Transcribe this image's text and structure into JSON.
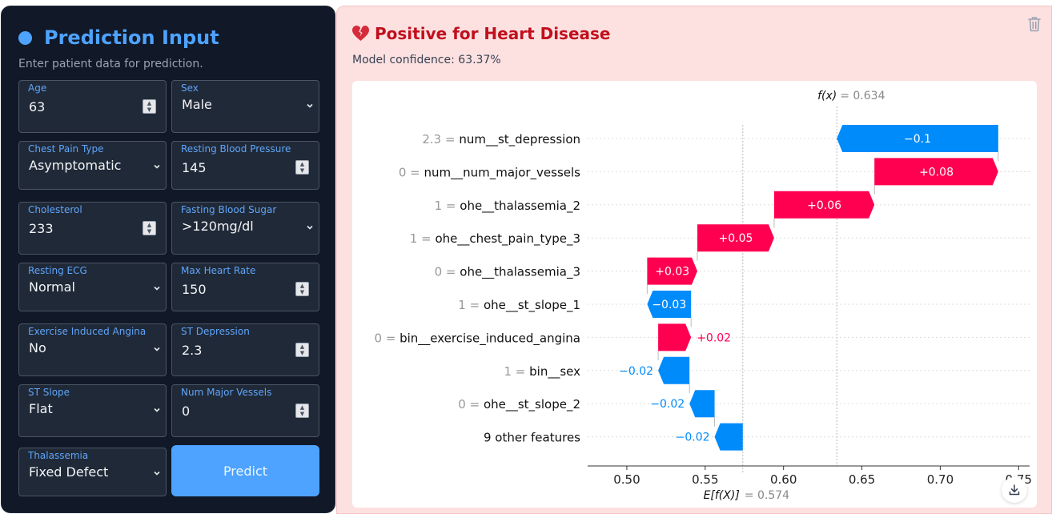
{
  "left": {
    "title": "Prediction Input",
    "subtitle": "Enter patient data for prediction.",
    "fields": [
      {
        "label": "Age",
        "value": "63",
        "kind": "num"
      },
      {
        "label": "Sex",
        "value": "Male",
        "kind": "sel"
      },
      {
        "label": "Chest Pain Type",
        "value": "Asymptomatic",
        "kind": "sel"
      },
      {
        "label": "Resting Blood Pressure",
        "value": "145",
        "kind": "num"
      },
      {
        "label": "Cholesterol",
        "value": "233",
        "kind": "num"
      },
      {
        "label": "Fasting Blood Sugar",
        "value": ">120mg/dl",
        "kind": "sel"
      },
      {
        "label": "Resting ECG",
        "value": "Normal",
        "kind": "sel"
      },
      {
        "label": "Max Heart Rate",
        "value": "150",
        "kind": "num"
      },
      {
        "label": "Exercise Induced Angina",
        "value": "No",
        "kind": "sel"
      },
      {
        "label": "ST Depression",
        "value": "2.3",
        "kind": "num"
      },
      {
        "label": "ST Slope",
        "value": "Flat",
        "kind": "sel"
      },
      {
        "label": "Num Major Vessels",
        "value": "0",
        "kind": "num"
      },
      {
        "label": "Thalassemia",
        "value": "Fixed Defect",
        "kind": "sel"
      }
    ],
    "predict_label": "Predict"
  },
  "result": {
    "title": "Positive for Heart Disease",
    "confidence": "Model confidence: 63.37%"
  },
  "colors": {
    "positive": "#ff0051",
    "negative": "#008bfb",
    "accent": "#4da3ff",
    "title_red": "#c10f1d"
  },
  "chart_data": {
    "type": "waterfall",
    "fx_label": "f(x)",
    "fx_value": "= 0.634",
    "ex_label": "E[f(X)]",
    "ex_value": "= 0.574",
    "base_value": 0.574,
    "output_value": 0.634,
    "xlim": [
      0.475,
      0.757
    ],
    "xticks": [
      "0.50",
      "0.55",
      "0.60",
      "0.65",
      "0.70",
      "0.75"
    ],
    "features": [
      {
        "value": "2.3 =",
        "name": "num__st_depression",
        "label": "−0.1",
        "start": 0.737,
        "end": 0.634,
        "inside": true
      },
      {
        "value": "0 =",
        "name": "num__num_major_vessels",
        "label": "+0.08",
        "start": 0.658,
        "end": 0.737,
        "inside": true
      },
      {
        "value": "1 =",
        "name": "ohe__thalassemia_2",
        "label": "+0.06",
        "start": 0.594,
        "end": 0.658,
        "inside": true
      },
      {
        "value": "1 =",
        "name": "ohe__chest_pain_type_3",
        "label": "+0.05",
        "start": 0.545,
        "end": 0.594,
        "inside": true
      },
      {
        "value": "0 =",
        "name": "ohe__thalassemia_3",
        "label": "+0.03",
        "start": 0.513,
        "end": 0.545,
        "inside": true
      },
      {
        "value": "1 =",
        "name": "ohe__st_slope_1",
        "label": "−0.03",
        "start": 0.541,
        "end": 0.513,
        "inside": true
      },
      {
        "value": "0 =",
        "name": "bin__exercise_induced_angina",
        "label": "+0.02",
        "start": 0.52,
        "end": 0.541,
        "inside": false
      },
      {
        "value": "1 =",
        "name": "bin__sex",
        "label": "−0.02",
        "start": 0.54,
        "end": 0.52,
        "inside": false
      },
      {
        "value": "0 =",
        "name": "ohe__st_slope_2",
        "label": "−0.02",
        "start": 0.556,
        "end": 0.54,
        "inside": false
      },
      {
        "value": "",
        "name": "9 other features",
        "label": "−0.02",
        "start": 0.574,
        "end": 0.556,
        "inside": false
      }
    ]
  }
}
